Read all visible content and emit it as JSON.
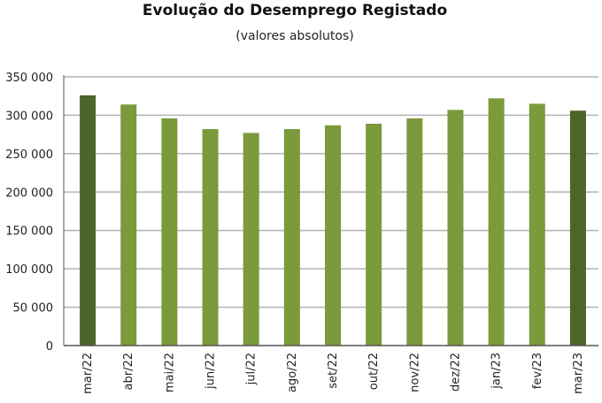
{
  "chart_data": {
    "type": "bar",
    "title": "Evolução do Desemprego Registado",
    "subtitle": "(valores absolutos)",
    "xlabel": "",
    "ylabel": "",
    "categories": [
      "mar/22",
      "abr/22",
      "mai/22",
      "jun/22",
      "jul/22",
      "ago/22",
      "set/22",
      "out/22",
      "nov/22",
      "dez/22",
      "jan/23",
      "fev/23",
      "mar/23"
    ],
    "values": [
      326000,
      314000,
      296000,
      282000,
      277000,
      282000,
      287000,
      289000,
      296000,
      307000,
      322000,
      315000,
      306000
    ],
    "highlighted": [
      0,
      12
    ],
    "ylim": [
      0,
      350000
    ],
    "yticks": [
      0,
      50000,
      100000,
      150000,
      200000,
      250000,
      300000,
      350000
    ],
    "ytick_labels": [
      "0",
      "50 000",
      "100 000",
      "150 000",
      "200 000",
      "250 000",
      "300 000",
      "350 000"
    ],
    "grid": true,
    "legend": "none",
    "colors": {
      "bar": "#7a9a3c",
      "bar_highlight": "#4d642a",
      "grid": "#b3b3b3",
      "axis": "#555555"
    }
  }
}
